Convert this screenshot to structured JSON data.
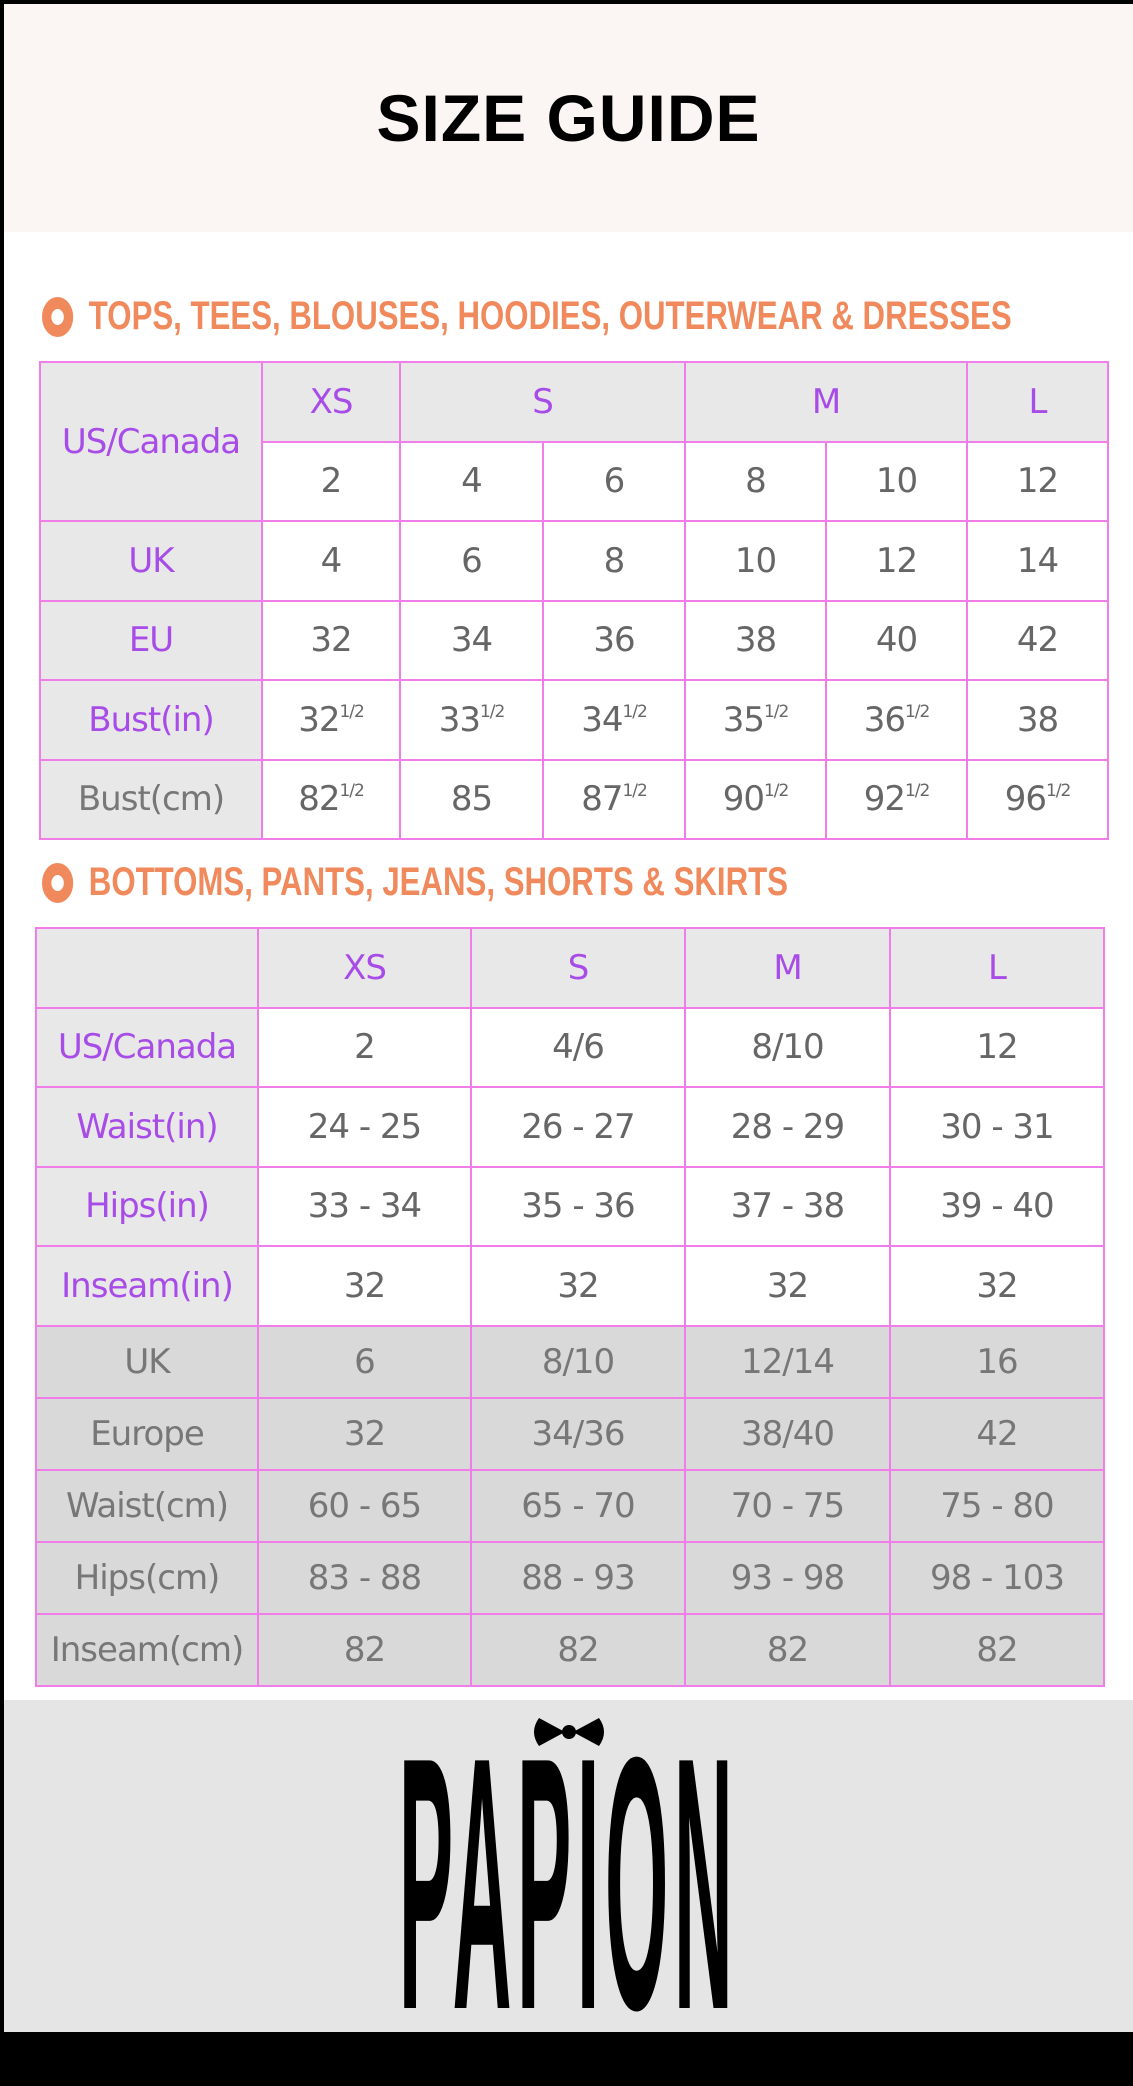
{
  "title": "SIZE GUIDE",
  "accent_color": "#f08a5d",
  "border_color": "#f07de8",
  "label_color": "#a84ce8",
  "tops": {
    "heading": "TOPS, TEES, BLOUSES, HOODIES, OUTERWEAR & DRESSES",
    "row_label_us": "US/Canada",
    "sizes": [
      "XS",
      "S",
      "M",
      "L"
    ],
    "us": [
      "2",
      "4",
      "6",
      "8",
      "10",
      "12"
    ],
    "rows": [
      {
        "label": "UK",
        "values": [
          "4",
          "6",
          "8",
          "10",
          "12",
          "14"
        ]
      },
      {
        "label": "EU",
        "values": [
          "32",
          "34",
          "36",
          "38",
          "40",
          "42"
        ]
      },
      {
        "label": "Bust(in)",
        "values": [
          [
            "32",
            "1/2"
          ],
          [
            "33",
            "1/2"
          ],
          [
            "34",
            "1/2"
          ],
          [
            "35",
            "1/2"
          ],
          [
            "36",
            "1/2"
          ],
          [
            "38",
            ""
          ]
        ]
      },
      {
        "label": "Bust(cm)",
        "values": [
          [
            "82",
            "1/2"
          ],
          [
            "85",
            ""
          ],
          [
            "87",
            "1/2"
          ],
          [
            "90",
            "1/2"
          ],
          [
            "92",
            "1/2"
          ],
          [
            "96",
            "1/2"
          ]
        ]
      }
    ]
  },
  "bottoms": {
    "heading": "BOTTOMS, PANTS, JEANS, SHORTS & SKIRTS",
    "sizes": [
      "XS",
      "S",
      "M",
      "L"
    ],
    "rows": [
      {
        "label": "US/Canada",
        "values": [
          "2",
          "4/6",
          "8/10",
          "12"
        ]
      },
      {
        "label": "Waist(in)",
        "values": [
          "24 - 25",
          "26 - 27",
          "28 - 29",
          "30 - 31"
        ]
      },
      {
        "label": "Hips(in)",
        "values": [
          "33 - 34",
          "35 - 36",
          "37 - 38",
          "39 - 40"
        ]
      },
      {
        "label": "Inseam(in)",
        "values": [
          "32",
          "32",
          "32",
          "32"
        ]
      }
    ],
    "metric_rows": [
      {
        "label": "UK",
        "values": [
          "6",
          "8/10",
          "12/14",
          "16"
        ]
      },
      {
        "label": "Europe",
        "values": [
          "32",
          "34/36",
          "38/40",
          "42"
        ]
      },
      {
        "label": "Waist(cm)",
        "values": [
          "60 - 65",
          "65 - 70",
          "70 - 75",
          "75 - 80"
        ]
      },
      {
        "label": "Hips(cm)",
        "values": [
          "83 - 88",
          "88 - 93",
          "93 - 98",
          "98 - 103"
        ]
      },
      {
        "label": "Inseam(cm)",
        "values": [
          "82",
          "82",
          "82",
          "82"
        ]
      }
    ]
  },
  "brand": "PAPION"
}
